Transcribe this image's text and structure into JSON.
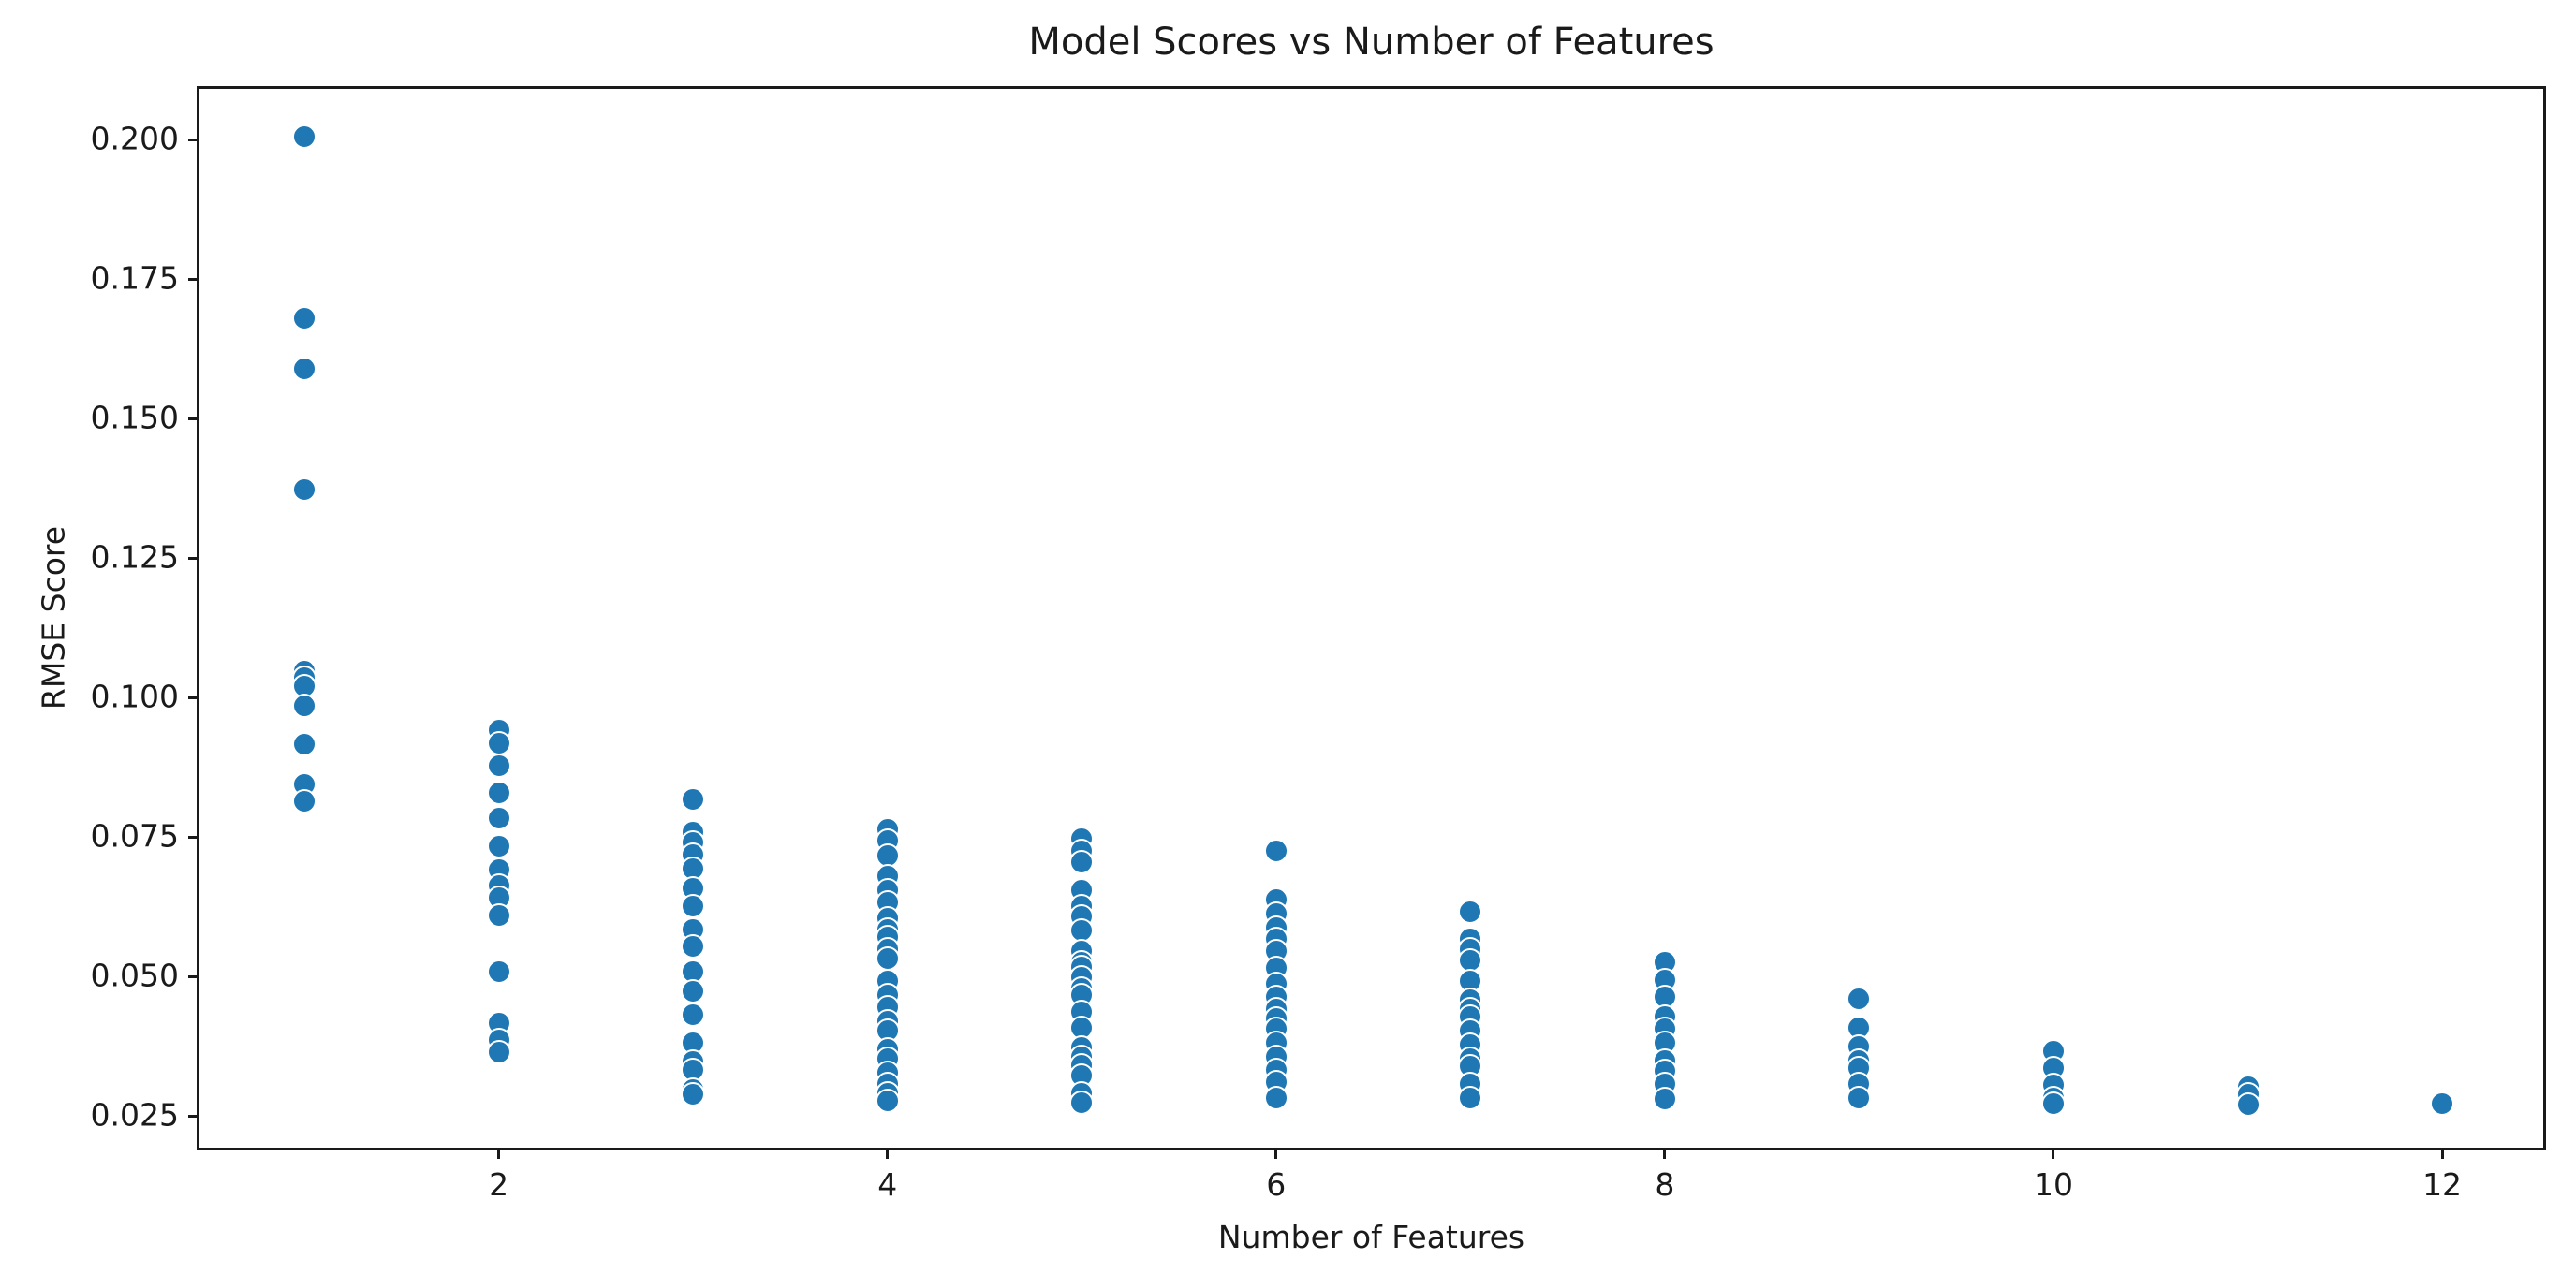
{
  "chart_data": {
    "type": "scatter",
    "title": "Model Scores vs Number of Features",
    "xlabel": "Number of Features",
    "ylabel": "RMSE Score",
    "xlim": [
      0.46,
      12.52
    ],
    "ylim": [
      0.0193,
      0.2091
    ],
    "grid": false,
    "legend": null,
    "x_ticks": [
      {
        "v": 2,
        "label": "2"
      },
      {
        "v": 4,
        "label": "4"
      },
      {
        "v": 6,
        "label": "6"
      },
      {
        "v": 8,
        "label": "8"
      },
      {
        "v": 10,
        "label": "10"
      },
      {
        "v": 12,
        "label": "12"
      }
    ],
    "y_ticks": [
      {
        "v": 0.2,
        "label": "0.200"
      },
      {
        "v": 0.175,
        "label": "0.175"
      },
      {
        "v": 0.15,
        "label": "0.150"
      },
      {
        "v": 0.125,
        "label": "0.125"
      },
      {
        "v": 0.1,
        "label": "0.100"
      },
      {
        "v": 0.075,
        "label": "0.075"
      },
      {
        "v": 0.05,
        "label": "0.050"
      },
      {
        "v": 0.025,
        "label": "0.025"
      }
    ],
    "marker": {
      "fill": "#1f77b4",
      "edge": "#ffffff",
      "diameter": 26
    },
    "colors": {
      "text": "#1a1a1a",
      "spine": "#1a1a1a",
      "background": "#ffffff"
    },
    "columns": [
      {
        "x": 1,
        "values": [
          0.2006,
          0.168,
          0.159,
          0.1372,
          0.1048,
          0.1036,
          0.102,
          0.0985,
          0.0916,
          0.0844,
          0.0814
        ]
      },
      {
        "x": 2,
        "values": [
          0.0941,
          0.0918,
          0.0877,
          0.0829,
          0.0783,
          0.0733,
          0.0691,
          0.0663,
          0.0641,
          0.0609,
          0.0508,
          0.0416,
          0.0386,
          0.0364
        ]
      },
      {
        "x": 3,
        "values": [
          0.0817,
          0.0759,
          0.074,
          0.0718,
          0.0693,
          0.0658,
          0.0626,
          0.0584,
          0.0554,
          0.0508,
          0.0473,
          0.0431,
          0.0381,
          0.0347,
          0.0332,
          0.0297,
          0.0288
        ]
      },
      {
        "x": 4,
        "values": [
          0.0763,
          0.0743,
          0.0717,
          0.068,
          0.0654,
          0.0633,
          0.0604,
          0.0584,
          0.0571,
          0.0549,
          0.0532,
          0.0492,
          0.0466,
          0.0445,
          0.042,
          0.0403,
          0.0369,
          0.0352,
          0.0327,
          0.0307,
          0.029,
          0.0277
        ]
      },
      {
        "x": 5,
        "values": [
          0.0747,
          0.0725,
          0.0705,
          0.0654,
          0.0626,
          0.0608,
          0.0582,
          0.0545,
          0.0525,
          0.0517,
          0.0498,
          0.0478,
          0.0466,
          0.0436,
          0.0408,
          0.0372,
          0.0356,
          0.034,
          0.0323,
          0.029,
          0.0273
        ]
      },
      {
        "x": 6,
        "values": [
          0.0725,
          0.0638,
          0.0613,
          0.0587,
          0.0567,
          0.0545,
          0.0515,
          0.0487,
          0.0464,
          0.0441,
          0.0424,
          0.0406,
          0.0381,
          0.0356,
          0.0332,
          0.031,
          0.0282
        ]
      },
      {
        "x": 7,
        "values": [
          0.0616,
          0.0567,
          0.0549,
          0.0529,
          0.0492,
          0.0458,
          0.0441,
          0.0428,
          0.0403,
          0.0377,
          0.0352,
          0.0339,
          0.0307,
          0.0282
        ]
      },
      {
        "x": 8,
        "values": [
          0.0525,
          0.0494,
          0.0463,
          0.0428,
          0.0406,
          0.0381,
          0.0349,
          0.033,
          0.0307,
          0.028
        ]
      },
      {
        "x": 9,
        "values": [
          0.046,
          0.0408,
          0.0374,
          0.0349,
          0.0336,
          0.0307,
          0.0282
        ]
      },
      {
        "x": 10,
        "values": [
          0.0366,
          0.0335,
          0.0306,
          0.0282,
          0.0272
        ]
      },
      {
        "x": 11,
        "values": [
          0.0302,
          0.0288,
          0.0271
        ]
      },
      {
        "x": 12,
        "values": [
          0.0272
        ]
      }
    ]
  }
}
